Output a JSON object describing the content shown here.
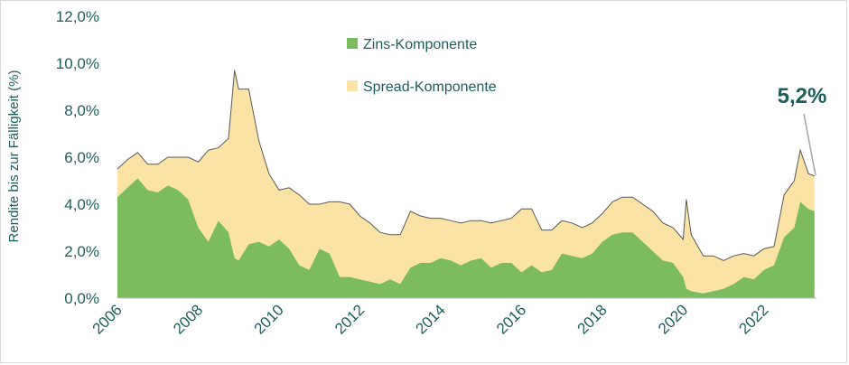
{
  "chart_data": {
    "type": "area",
    "title": "",
    "ylabel": "Rendite bis zur Fälligkeit (%)",
    "xlabel": "",
    "ylim": [
      0,
      12
    ],
    "xlim": [
      2006,
      2023.3
    ],
    "y_ticks": [
      "0,0%",
      "2,0%",
      "4,0%",
      "6,0%",
      "8,0%",
      "10,0%",
      "12,0%"
    ],
    "x_ticks": [
      "2006",
      "2008",
      "2010",
      "2012",
      "2014",
      "2016",
      "2018",
      "2020",
      "2022"
    ],
    "stacked": true,
    "legend_position": "top-center",
    "callout": "5,2%",
    "colors": {
      "zins": "#7cbb5e",
      "spread": "#fbe3a6",
      "total_line": "#595959",
      "axis_text": "#1f5e5a",
      "callout": "#1b5e5a"
    },
    "x": [
      2006.0,
      2006.25,
      2006.5,
      2006.75,
      2007.0,
      2007.25,
      2007.5,
      2007.75,
      2008.0,
      2008.25,
      2008.5,
      2008.75,
      2008.9,
      2009.0,
      2009.25,
      2009.5,
      2009.75,
      2010.0,
      2010.25,
      2010.5,
      2010.75,
      2011.0,
      2011.25,
      2011.5,
      2011.75,
      2012.0,
      2012.25,
      2012.5,
      2012.75,
      2013.0,
      2013.25,
      2013.5,
      2013.75,
      2014.0,
      2014.25,
      2014.5,
      2014.75,
      2015.0,
      2015.25,
      2015.5,
      2015.75,
      2016.0,
      2016.25,
      2016.5,
      2016.75,
      2017.0,
      2017.25,
      2017.5,
      2017.75,
      2018.0,
      2018.25,
      2018.5,
      2018.75,
      2019.0,
      2019.25,
      2019.5,
      2019.75,
      2020.0,
      2020.08,
      2020.2,
      2020.5,
      2020.75,
      2021.0,
      2021.25,
      2021.5,
      2021.75,
      2022.0,
      2022.25,
      2022.5,
      2022.75,
      2022.9,
      2023.1,
      2023.25
    ],
    "series": [
      {
        "name": "Zins-Komponente",
        "values": [
          4.3,
          4.7,
          5.1,
          4.6,
          4.5,
          4.8,
          4.6,
          4.2,
          3.0,
          2.4,
          3.3,
          2.8,
          1.7,
          1.6,
          2.3,
          2.4,
          2.2,
          2.5,
          2.1,
          1.4,
          1.2,
          2.1,
          1.9,
          0.9,
          0.9,
          0.8,
          0.7,
          0.6,
          0.8,
          0.6,
          1.3,
          1.5,
          1.5,
          1.7,
          1.6,
          1.4,
          1.6,
          1.7,
          1.3,
          1.5,
          1.5,
          1.1,
          1.4,
          1.1,
          1.2,
          1.9,
          1.8,
          1.7,
          1.9,
          2.4,
          2.7,
          2.8,
          2.8,
          2.4,
          2.0,
          1.6,
          1.5,
          0.9,
          0.4,
          0.3,
          0.2,
          0.3,
          0.4,
          0.6,
          0.9,
          0.8,
          1.2,
          1.4,
          2.6,
          3.0,
          4.1,
          3.8,
          3.7
        ]
      },
      {
        "name": "Spread-Komponente",
        "values": [
          1.2,
          1.2,
          1.1,
          1.1,
          1.2,
          1.2,
          1.4,
          1.8,
          2.8,
          3.9,
          3.1,
          4.0,
          8.0,
          7.3,
          6.6,
          4.3,
          3.1,
          2.1,
          2.6,
          3.0,
          2.8,
          1.9,
          2.2,
          3.2,
          3.1,
          2.7,
          2.5,
          2.2,
          1.9,
          2.1,
          2.4,
          2.0,
          1.9,
          1.7,
          1.7,
          1.8,
          1.7,
          1.6,
          1.9,
          1.8,
          1.9,
          2.7,
          2.4,
          1.8,
          1.7,
          1.4,
          1.4,
          1.3,
          1.3,
          1.2,
          1.4,
          1.5,
          1.5,
          1.6,
          1.7,
          1.6,
          1.5,
          1.6,
          3.8,
          2.4,
          1.6,
          1.5,
          1.2,
          1.2,
          1.0,
          1.0,
          0.9,
          0.8,
          1.8,
          2.0,
          2.2,
          1.5,
          1.5
        ]
      }
    ]
  }
}
